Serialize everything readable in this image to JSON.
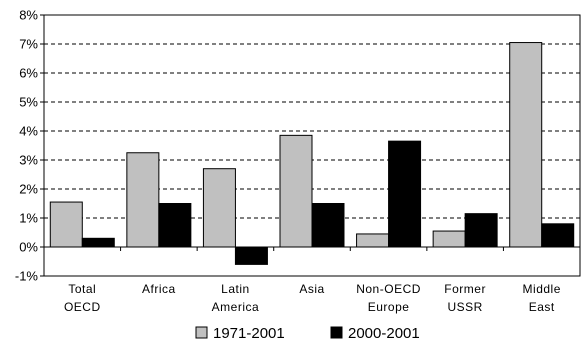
{
  "chart_data": {
    "type": "bar",
    "title": "",
    "xlabel": "",
    "ylabel": "",
    "ylim": [
      -1,
      8
    ],
    "yticks": [
      -1,
      0,
      1,
      2,
      3,
      4,
      5,
      6,
      7,
      8
    ],
    "yticks_labels": [
      "-1%",
      "0%",
      "1%",
      "2%",
      "3%",
      "4%",
      "5%",
      "6%",
      "7%",
      "8%"
    ],
    "y_unit": "%",
    "grid": "horizontal dashed",
    "legend_position": "bottom",
    "categories": [
      [
        "Total",
        "OECD"
      ],
      [
        "Africa"
      ],
      [
        "Latin",
        "America"
      ],
      [
        "Asia"
      ],
      [
        "Non-OECD",
        "Europe"
      ],
      [
        "Former",
        "USSR"
      ],
      [
        "Middle",
        "East"
      ]
    ],
    "series": [
      {
        "name": "1971-2001",
        "color": "#c0c0c0",
        "values": [
          1.55,
          3.25,
          2.7,
          3.85,
          0.45,
          0.55,
          7.05
        ]
      },
      {
        "name": "2000-2001",
        "color": "#000000",
        "values": [
          0.3,
          1.5,
          -0.6,
          1.5,
          3.65,
          1.15,
          0.8
        ]
      }
    ]
  }
}
